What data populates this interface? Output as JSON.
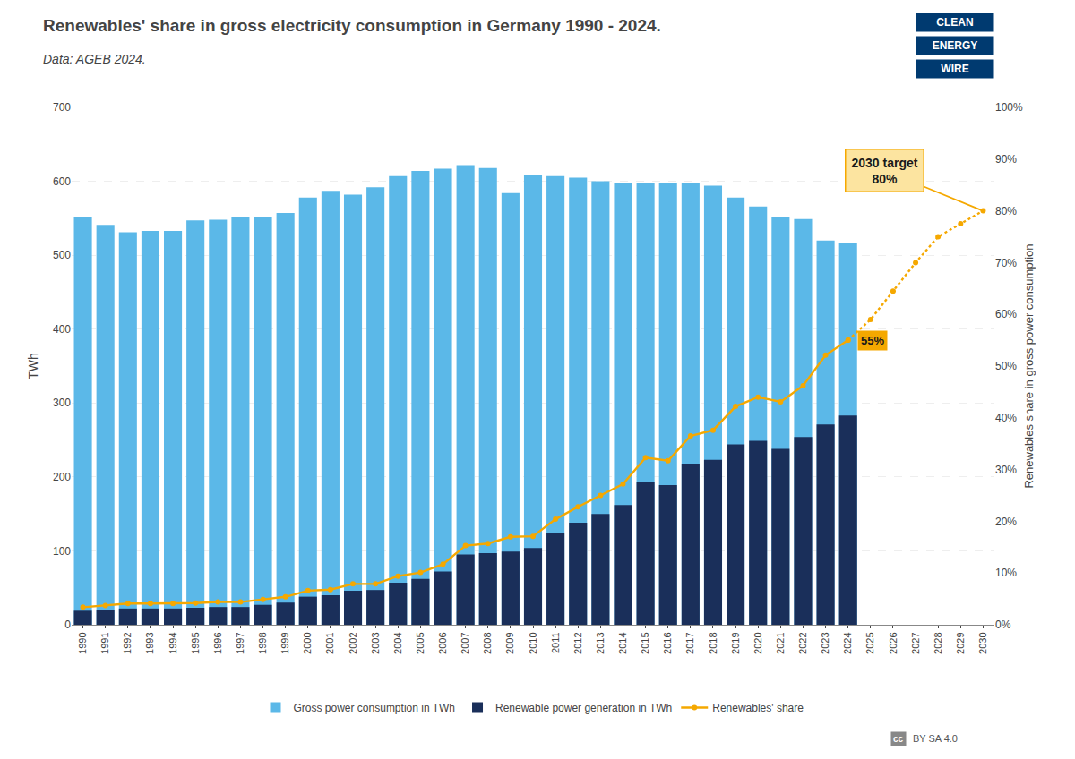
{
  "chart_data": {
    "type": "bar",
    "title": "Renewables' share in gross electricity consumption in Germany 1990 - 2024.",
    "subtitle": "Data: AGEB 2024.",
    "x": [
      1990,
      1991,
      1992,
      1993,
      1994,
      1995,
      1996,
      1997,
      1998,
      1999,
      2000,
      2001,
      2002,
      2003,
      2004,
      2005,
      2006,
      2007,
      2008,
      2009,
      2010,
      2011,
      2012,
      2013,
      2014,
      2015,
      2016,
      2017,
      2018,
      2019,
      2020,
      2021,
      2022,
      2023,
      2024
    ],
    "xlim": [
      1989.5,
      2030.5
    ],
    "xticks": [
      1990,
      1991,
      1992,
      1993,
      1994,
      1995,
      1996,
      1997,
      1998,
      1999,
      2000,
      2001,
      2002,
      2003,
      2004,
      2005,
      2006,
      2007,
      2008,
      2009,
      2010,
      2011,
      2012,
      2013,
      2014,
      2015,
      2016,
      2017,
      2018,
      2019,
      2020,
      2021,
      2022,
      2023,
      2024,
      2025,
      2026,
      2027,
      2028,
      2029,
      2030
    ],
    "ylabel": "TWh",
    "y2label": "Renewables share in gross power consumption",
    "ylim": [
      0,
      700
    ],
    "yticks": [
      0,
      100,
      200,
      300,
      400,
      500,
      600,
      700
    ],
    "y2lim": [
      0,
      1.0
    ],
    "y2ticks": [
      {
        "value": 0,
        "label": "0%"
      },
      {
        "value": 0.1,
        "label": "10%"
      },
      {
        "value": 0.2,
        "label": "20%"
      },
      {
        "value": 0.3,
        "label": "30%"
      },
      {
        "value": 0.4,
        "label": "40%"
      },
      {
        "value": 0.5,
        "label": "50%"
      },
      {
        "value": 0.6,
        "label": "60%"
      },
      {
        "value": 0.7,
        "label": "70%"
      },
      {
        "value": 0.8,
        "label": "80%"
      },
      {
        "value": 0.9,
        "label": "90%"
      },
      {
        "value": 1.0,
        "label": "100%"
      }
    ],
    "grid": true,
    "legend": "bottom",
    "stacked": false,
    "series": [
      {
        "name": "Gross power consumption in TWh",
        "type": "bar",
        "color": "#5bb8e8",
        "values": [
          551,
          541,
          531,
          533,
          533,
          547,
          548,
          551,
          551,
          557,
          578,
          587,
          582,
          592,
          607,
          614,
          617,
          622,
          618,
          584,
          609,
          607,
          605,
          600,
          597,
          597,
          597,
          597,
          594,
          578,
          566,
          552,
          549,
          520,
          516
        ]
      },
      {
        "name": "Renewable power generation in TWh",
        "type": "bar",
        "color": "#1a2f5a",
        "values": [
          19,
          20,
          22,
          22,
          22,
          23,
          24,
          24,
          27,
          30,
          38,
          40,
          46,
          47,
          57,
          62,
          72,
          95,
          97,
          99,
          104,
          124,
          138,
          150,
          162,
          193,
          189,
          218,
          223,
          244,
          249,
          238,
          254,
          271,
          283
        ]
      },
      {
        "name": "Renewables' share",
        "type": "line",
        "axis": "y2",
        "color": "#f5a800",
        "marker": "circle",
        "line_style": "solid",
        "values": [
          0.034,
          0.037,
          0.041,
          0.041,
          0.041,
          0.042,
          0.044,
          0.044,
          0.049,
          0.054,
          0.066,
          0.068,
          0.079,
          0.079,
          0.094,
          0.101,
          0.117,
          0.153,
          0.157,
          0.17,
          0.171,
          0.204,
          0.228,
          0.25,
          0.272,
          0.323,
          0.317,
          0.365,
          0.376,
          0.422,
          0.44,
          0.431,
          0.462,
          0.521,
          0.55
        ]
      },
      {
        "type": "line",
        "axis": "y2",
        "color": "#f5a800",
        "marker": "circle",
        "line_style": "dotted",
        "x": [
          2024,
          2025,
          2026,
          2027,
          2028,
          2029,
          2030
        ],
        "values": [
          0.55,
          0.59,
          0.645,
          0.7,
          0.75,
          0.775,
          0.8
        ]
      }
    ],
    "annotations": [
      {
        "text": "2030 target\n80%",
        "x": 2030,
        "y": 0.8,
        "axis": "y2",
        "color": "#fce4a0"
      },
      {
        "text": "55%",
        "x": 2024,
        "y": 0.55,
        "axis": "y2",
        "color": "#f5a800"
      },
      {
        "text": "CLEAN",
        "color": "#003a70"
      },
      {
        "text": "ENERGY",
        "color": "#003a70"
      },
      {
        "text": "WIRE",
        "color": "#003a70"
      },
      {
        "text": "cc",
        "color": "#888888"
      },
      {
        "text": "BY SA 4.0"
      }
    ]
  }
}
